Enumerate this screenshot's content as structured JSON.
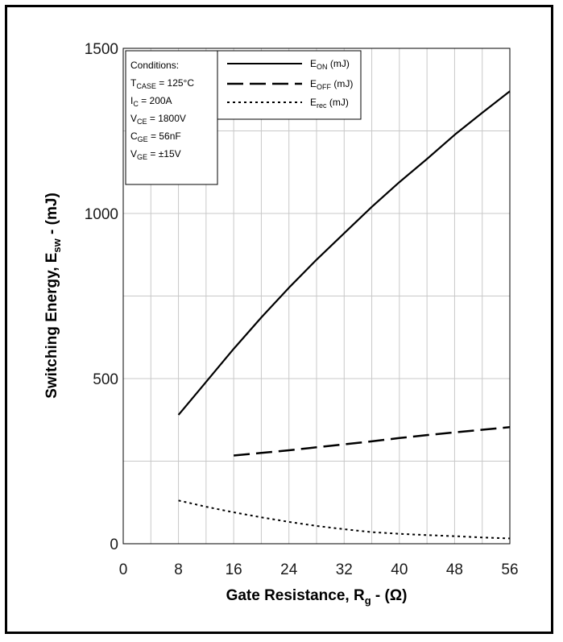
{
  "chart_data": {
    "type": "line",
    "xlabel": {
      "main": "Gate Resistance, R",
      "sub": "g",
      "rest": " - (Ω)"
    },
    "ylabel": {
      "main": "Switching Energy, E",
      "sub": "sw",
      "rest": " - (mJ)"
    },
    "xlim": [
      0,
      56
    ],
    "ylim": [
      0,
      1500
    ],
    "x_ticks": [
      0,
      8,
      16,
      24,
      32,
      40,
      48,
      56
    ],
    "y_ticks": [
      0,
      500,
      1000,
      1500
    ],
    "x_grid": [
      4,
      8,
      12,
      16,
      20,
      24,
      28,
      32,
      36,
      40,
      44,
      48,
      52
    ],
    "y_grid": [
      250,
      500,
      750,
      1000,
      1250
    ],
    "grid": true,
    "legend_position": "top",
    "series": [
      {
        "name": "E_ON (mJ)",
        "style": "solid",
        "x": [
          8,
          12,
          16,
          20,
          24,
          28,
          32,
          36,
          40,
          44,
          48,
          52,
          56
        ],
        "y": [
          390,
          490,
          590,
          685,
          775,
          860,
          940,
          1020,
          1095,
          1165,
          1238,
          1305,
          1370
        ]
      },
      {
        "name": "E_OFF (mJ)",
        "style": "dashed",
        "x": [
          16,
          20,
          24,
          28,
          32,
          36,
          40,
          44,
          48,
          52,
          56
        ],
        "y": [
          267,
          275,
          283,
          292,
          301,
          310,
          320,
          329,
          337,
          345,
          353
        ]
      },
      {
        "name": "E_rec (mJ)",
        "style": "dotted",
        "x": [
          8,
          12,
          16,
          20,
          24,
          28,
          32,
          36,
          40,
          44,
          48,
          52,
          56
        ],
        "y": [
          131,
          112,
          95,
          80,
          66,
          54,
          44,
          35,
          30,
          26,
          23,
          19,
          16
        ]
      }
    ]
  },
  "legend": [
    {
      "main": "E",
      "sub": "ON",
      "unit": " (mJ)"
    },
    {
      "main": "E",
      "sub": "OFF",
      "unit": " (mJ)"
    },
    {
      "main": "E",
      "sub": "rec",
      "unit": " (mJ)"
    }
  ],
  "conditions": {
    "title": "Conditions:",
    "lines": [
      {
        "main": "T",
        "sub": "CASE",
        "rest": " = 125°C"
      },
      {
        "main": "I",
        "sub": "C",
        "rest": " = 200A"
      },
      {
        "main": "V",
        "sub": "CE",
        "rest": " = 1800V"
      },
      {
        "main": "C",
        "sub": "GE",
        "rest": " = 56nF"
      },
      {
        "main": "V",
        "sub": "GE",
        "rest": " = ±15V"
      }
    ]
  }
}
